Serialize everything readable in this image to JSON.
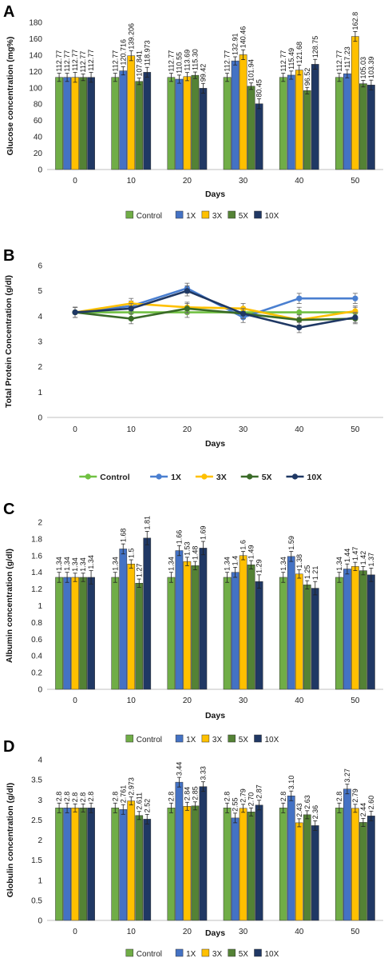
{
  "colors": {
    "Control": "#70AD47",
    "1X": "#4472C4",
    "3X": "#FFC000",
    "5X": "#548235",
    "10X": "#203864",
    "line_Control": "#70C142",
    "line_1X": "#4A7FD0",
    "line_3X": "#FFC000",
    "line_5X": "#3A6B28",
    "line_10X": "#1F3864"
  },
  "chart_data": [
    {
      "panel": "A",
      "type": "bar",
      "xlabel": "Days",
      "ylabel": "Glucose  concentration (mg%)",
      "categories": [
        "0",
        "10",
        "20",
        "30",
        "40",
        "50"
      ],
      "ylim": [
        0,
        180
      ],
      "yticks": [
        0,
        20,
        40,
        60,
        80,
        100,
        120,
        140,
        160,
        180
      ],
      "series": [
        {
          "name": "Control",
          "values": [
            112.77,
            112.77,
            112.77,
            112.77,
            112.77,
            112.77
          ],
          "errors": [
            5,
            5,
            5,
            5,
            5,
            5
          ],
          "labels": [
            "112.77",
            "112.77",
            "112.77",
            "112.77",
            "112.77",
            "112.77"
          ]
        },
        {
          "name": "1X",
          "values": [
            112.77,
            120.716,
            110.55,
            132.91,
            115.49,
            117.23
          ],
          "errors": [
            5,
            5,
            5,
            5,
            5,
            5
          ],
          "labels": [
            "112.77",
            "120.716",
            "110.55",
            "132.91",
            "115.49",
            "117.23"
          ]
        },
        {
          "name": "3X",
          "values": [
            112.77,
            139.206,
            113.69,
            140.46,
            121.68,
            162.8
          ],
          "errors": [
            6,
            6,
            5,
            6,
            6,
            6
          ],
          "labels": [
            "112.77",
            "139.206",
            "113.69",
            "140.46",
            "121.68",
            "162.8"
          ]
        },
        {
          "name": "5X",
          "values": [
            112.77,
            107.841,
            115.3,
            101.94,
            96.52,
            105.03
          ],
          "errors": [
            4,
            4,
            4,
            4,
            4,
            4
          ],
          "labels": [
            "112.77",
            "107.841",
            "115.30",
            "101.94",
            "96.52",
            "105.03"
          ]
        },
        {
          "name": "10X",
          "values": [
            112.77,
            118.973,
            99.42,
            80.45,
            128.75,
            103.39
          ],
          "errors": [
            6,
            6,
            6,
            6,
            6,
            6
          ],
          "labels": [
            "112.77",
            "118.973",
            "99.42",
            "80.45",
            "128.75",
            "103.39"
          ]
        }
      ]
    },
    {
      "panel": "B",
      "type": "line",
      "xlabel": "Days",
      "ylabel": "Total Protein Concentration (g/dl)",
      "x": [
        "0",
        "10",
        "20",
        "30",
        "40",
        "50"
      ],
      "ylim": [
        0,
        6
      ],
      "yticks": [
        0,
        1,
        2,
        3,
        4,
        5,
        6
      ],
      "series": [
        {
          "name": "Control",
          "values": [
            4.15,
            4.15,
            4.15,
            4.15,
            4.15,
            4.15
          ],
          "errors": [
            0.2,
            0.2,
            0.2,
            0.2,
            0.2,
            0.2
          ]
        },
        {
          "name": "1X",
          "values": [
            4.15,
            4.4,
            5.1,
            3.95,
            4.7,
            4.7
          ],
          "errors": [
            0.2,
            0.2,
            0.2,
            0.2,
            0.2,
            0.2
          ]
        },
        {
          "name": "3X",
          "values": [
            4.15,
            4.5,
            4.35,
            4.3,
            3.85,
            4.2
          ],
          "errors": [
            0.2,
            0.2,
            0.2,
            0.2,
            0.2,
            0.2
          ]
        },
        {
          "name": "5X",
          "values": [
            4.15,
            3.9,
            4.3,
            4.1,
            3.85,
            3.9
          ],
          "errors": [
            0.2,
            0.2,
            0.2,
            0.2,
            0.2,
            0.2
          ]
        },
        {
          "name": "10X",
          "values": [
            4.15,
            4.3,
            5.0,
            4.1,
            3.55,
            3.95
          ],
          "errors": [
            0.2,
            0.2,
            0.2,
            0.2,
            0.2,
            0.2
          ]
        }
      ]
    },
    {
      "panel": "C",
      "type": "bar",
      "xlabel": "Days",
      "ylabel": "Albumin concentration (g/dl)",
      "categories": [
        "0",
        "10",
        "20",
        "30",
        "40",
        "50"
      ],
      "ylim": [
        0,
        2
      ],
      "yticks": [
        0,
        0.2,
        0.4,
        0.6,
        0.8,
        1,
        1.2,
        1.4,
        1.6,
        1.8,
        2
      ],
      "series": [
        {
          "name": "Control",
          "values": [
            1.34,
            1.34,
            1.34,
            1.34,
            1.34,
            1.34
          ],
          "errors": [
            0.06,
            0.06,
            0.06,
            0.06,
            0.06,
            0.06
          ],
          "labels": [
            "1.34",
            "1.34",
            "1.34",
            "1.34",
            "1.34",
            "1.34"
          ]
        },
        {
          "name": "1X",
          "values": [
            1.34,
            1.68,
            1.66,
            1.4,
            1.59,
            1.44
          ],
          "errors": [
            0.06,
            0.06,
            0.06,
            0.06,
            0.06,
            0.06
          ],
          "labels": [
            "1.34",
            "1.68",
            "1.66",
            "1.4",
            "1.59",
            "1.44"
          ]
        },
        {
          "name": "3X",
          "values": [
            1.34,
            1.5,
            1.53,
            1.6,
            1.38,
            1.47
          ],
          "errors": [
            0.05,
            0.05,
            0.05,
            0.05,
            0.05,
            0.05
          ],
          "labels": [
            "1.34",
            "1.5",
            "1.53",
            "1.6",
            "1.38",
            "1.47"
          ]
        },
        {
          "name": "5X",
          "values": [
            1.34,
            1.27,
            1.48,
            1.49,
            1.25,
            1.42
          ],
          "errors": [
            0.05,
            0.05,
            0.05,
            0.05,
            0.05,
            0.05
          ],
          "labels": [
            "1.34",
            "1.27",
            "1.48",
            "1.49",
            "1.25",
            "1.42"
          ]
        },
        {
          "name": "10X",
          "values": [
            1.34,
            1.81,
            1.69,
            1.29,
            1.21,
            1.37
          ],
          "errors": [
            0.08,
            0.08,
            0.08,
            0.08,
            0.08,
            0.08
          ],
          "labels": [
            "1.34",
            "1.81",
            "1.69",
            "1.29",
            "1.21",
            "1.37"
          ]
        }
      ]
    },
    {
      "panel": "D",
      "type": "bar",
      "xlabel": "Days",
      "ylabel": "Globulin concentration (g/dl)",
      "categories": [
        "0",
        "10",
        "20",
        "30",
        "40",
        "50"
      ],
      "ylim": [
        0,
        4
      ],
      "yticks": [
        0,
        0.5,
        1,
        1.5,
        2,
        2.5,
        3,
        3.5,
        4
      ],
      "series": [
        {
          "name": "Control",
          "values": [
            2.8,
            2.8,
            2.8,
            2.8,
            2.8,
            2.8
          ],
          "errors": [
            0.12,
            0.12,
            0.12,
            0.12,
            0.12,
            0.12
          ],
          "labels": [
            "2.8",
            "2.8",
            "2.8",
            "2.8",
            "2.8",
            "2.8"
          ]
        },
        {
          "name": "1X",
          "values": [
            2.8,
            2.761,
            3.44,
            2.55,
            3.1,
            3.27
          ],
          "errors": [
            0.12,
            0.12,
            0.12,
            0.12,
            0.12,
            0.12
          ],
          "labels": [
            "2.8",
            "2.761",
            "3.44",
            "2.55",
            "3.10",
            "3.27"
          ]
        },
        {
          "name": "3X",
          "values": [
            2.8,
            2.973,
            2.84,
            2.79,
            2.43,
            2.79
          ],
          "errors": [
            0.1,
            0.1,
            0.1,
            0.1,
            0.1,
            0.1
          ],
          "labels": [
            "2.8",
            "2.973",
            "2.84",
            "2.79",
            "2.43",
            "2.79"
          ]
        },
        {
          "name": "5X",
          "values": [
            2.8,
            2.611,
            2.85,
            2.7,
            2.63,
            2.44
          ],
          "errors": [
            0.1,
            0.1,
            0.1,
            0.1,
            0.1,
            0.1
          ],
          "labels": [
            "2.8",
            "2.611",
            "2.85",
            "2.70",
            "2.63",
            "2.44"
          ]
        },
        {
          "name": "10X",
          "values": [
            2.8,
            2.52,
            3.33,
            2.87,
            2.36,
            2.6
          ],
          "errors": [
            0.12,
            0.12,
            0.12,
            0.12,
            0.12,
            0.12
          ],
          "labels": [
            "2.8",
            "2.52",
            "3.33",
            "2.87",
            "2.36",
            "2.60"
          ]
        }
      ]
    }
  ],
  "panels": {
    "A": {
      "letter": "A"
    },
    "B": {
      "letter": "B"
    },
    "C": {
      "letter": "C"
    },
    "D": {
      "letter": "D"
    }
  }
}
